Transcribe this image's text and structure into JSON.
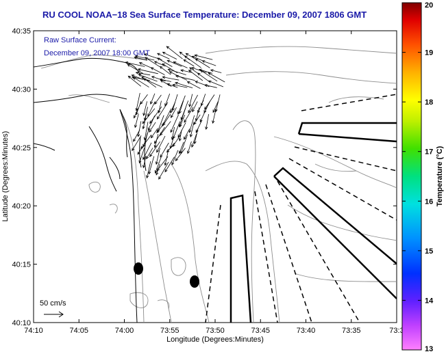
{
  "title": "RU COOL  NOAA−18  Sea Surface Temperature:  December 09, 2007 1806 GMT",
  "current_annotation": {
    "line1": "Raw Surface Current:",
    "line2": "December 09, 2007 18:00 GMT"
  },
  "scale_label": "50 cm/s",
  "axes": {
    "xlabel": "Longitude (Degrees:Minutes)",
    "ylabel": "Latitude (Degrees:Minutes)",
    "x_ticks": [
      "74:10",
      "74:05",
      "74:00",
      "73:55",
      "73:50",
      "73:45",
      "73:40",
      "73:35",
      "73:3"
    ],
    "y_ticks": [
      "40:35",
      "40:30",
      "40:25",
      "40:20",
      "40:15",
      "40:10"
    ]
  },
  "colorbar": {
    "label": "Temperature (°C)",
    "ticks": [
      "20",
      "19",
      "18",
      "17",
      "16",
      "15",
      "14",
      "13"
    ],
    "min": 13,
    "max": 20
  },
  "colors": {
    "title": "#1a1aa8",
    "annotation": "#1a1aa8",
    "contour": "#8c8c8c",
    "coast": "#000000"
  }
}
